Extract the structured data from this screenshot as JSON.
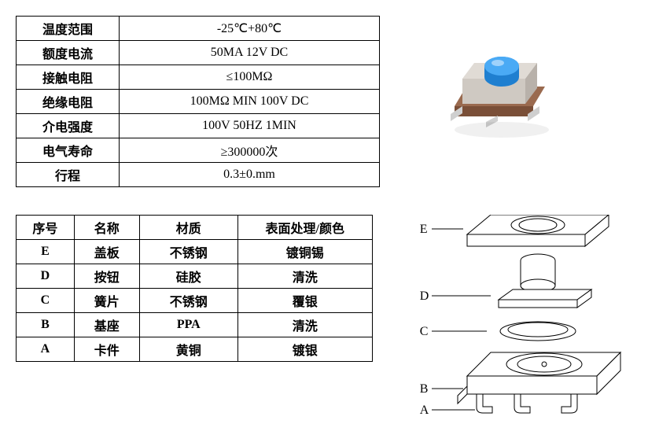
{
  "spec_table": {
    "rows": [
      {
        "label": "温度范围",
        "value": "-25℃+80℃"
      },
      {
        "label": "额度电流",
        "value": "50MA 12V DC"
      },
      {
        "label": "接触电阻",
        "value": "≤100MΩ"
      },
      {
        "label": "绝缘电阻",
        "value": "100MΩ MIN 100V DC"
      },
      {
        "label": "介电强度",
        "value": "100V 50HZ  1MIN"
      },
      {
        "label": "电气寿命",
        "value": "≥300000次"
      },
      {
        "label": "行程",
        "value": "0.3±0.mm"
      }
    ]
  },
  "parts_table": {
    "headers": [
      "序号",
      "名称",
      "材质",
      "表面处理/颜色"
    ],
    "rows": [
      [
        "E",
        "盖板",
        "不锈钢",
        "镀铜锡"
      ],
      [
        "D",
        "按钮",
        "硅胶",
        "清洗"
      ],
      [
        "C",
        "簧片",
        "不锈钢",
        "覆银"
      ],
      [
        "B",
        "基座",
        "PPA",
        "清洗"
      ],
      [
        "A",
        "卡件",
        "黄铜",
        "镀银"
      ]
    ]
  },
  "diagram": {
    "labels": [
      "E",
      "D",
      "C",
      "B",
      "A"
    ]
  },
  "photo": {
    "button_color": "#2e9af0",
    "body_color": "#d9d4cf",
    "pin_color": "#c0c0c0",
    "base_color": "#9a6a4f"
  }
}
